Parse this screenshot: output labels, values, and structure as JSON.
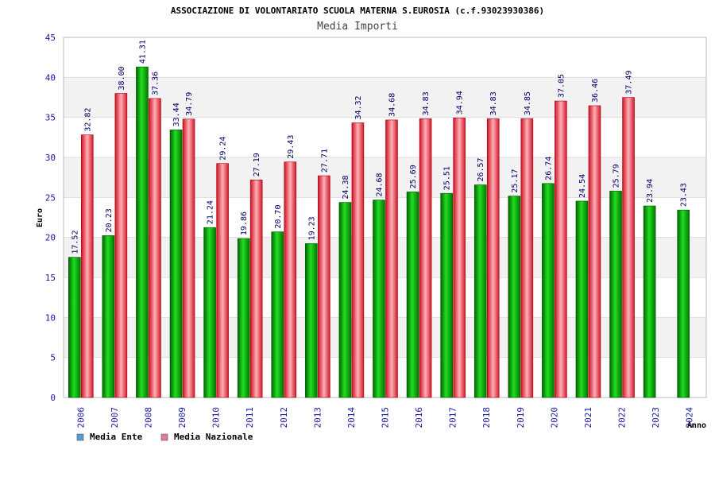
{
  "chart_data": {
    "type": "bar",
    "title": "ASSOCIAZIONE DI VOLONTARIATO SCUOLA MATERNA S.EUROSIA (c.f.93023930386)",
    "subtitle": "Media Importi",
    "ylabel": "Euro",
    "xlabel": "Anno",
    "ylim": [
      0,
      45
    ],
    "yticks": [
      0,
      5,
      10,
      15,
      20,
      25,
      30,
      35,
      40,
      45
    ],
    "grid": true,
    "legend_position": "bottom-left",
    "categories": [
      "2006",
      "2007",
      "2008",
      "2009",
      "2010",
      "2011",
      "2012",
      "2013",
      "2014",
      "2015",
      "2016",
      "2017",
      "2018",
      "2019",
      "2020",
      "2021",
      "2022",
      "2023",
      "2024"
    ],
    "series": [
      {
        "name": "Media Ente",
        "color": "#00aa00",
        "legend_color": "#5b9bd5",
        "values": [
          17.52,
          20.23,
          41.31,
          33.44,
          21.24,
          19.86,
          20.7,
          19.23,
          24.38,
          24.68,
          25.69,
          25.51,
          26.57,
          25.17,
          26.74,
          24.54,
          25.79,
          23.94,
          23.43
        ],
        "labels": [
          "17.52",
          "20.23",
          "41.31",
          "33.44",
          "21.24",
          "19.86",
          "20.70",
          "19.23",
          "24.38",
          "24.68",
          "25.69",
          "25.51",
          "26.57",
          "25.17",
          "26.74",
          "24.54",
          "25.79",
          "23.94",
          "23.43"
        ]
      },
      {
        "name": "Media Nazionale",
        "color": "#e8303a",
        "legend_color": "#e07aa0",
        "values": [
          32.82,
          38.0,
          37.36,
          34.79,
          29.24,
          27.19,
          29.43,
          27.71,
          34.32,
          34.68,
          34.83,
          34.94,
          34.83,
          34.85,
          37.05,
          36.46,
          37.49,
          null,
          null
        ],
        "labels": [
          "32.82",
          "38.00",
          "37.36",
          "34.79",
          "29.24",
          "27.19",
          "29.43",
          "27.71",
          "34.32",
          "34.68",
          "34.83",
          "34.94",
          "34.83",
          "34.85",
          "37.05",
          "36.46",
          "37.49",
          null,
          null
        ]
      }
    ]
  }
}
